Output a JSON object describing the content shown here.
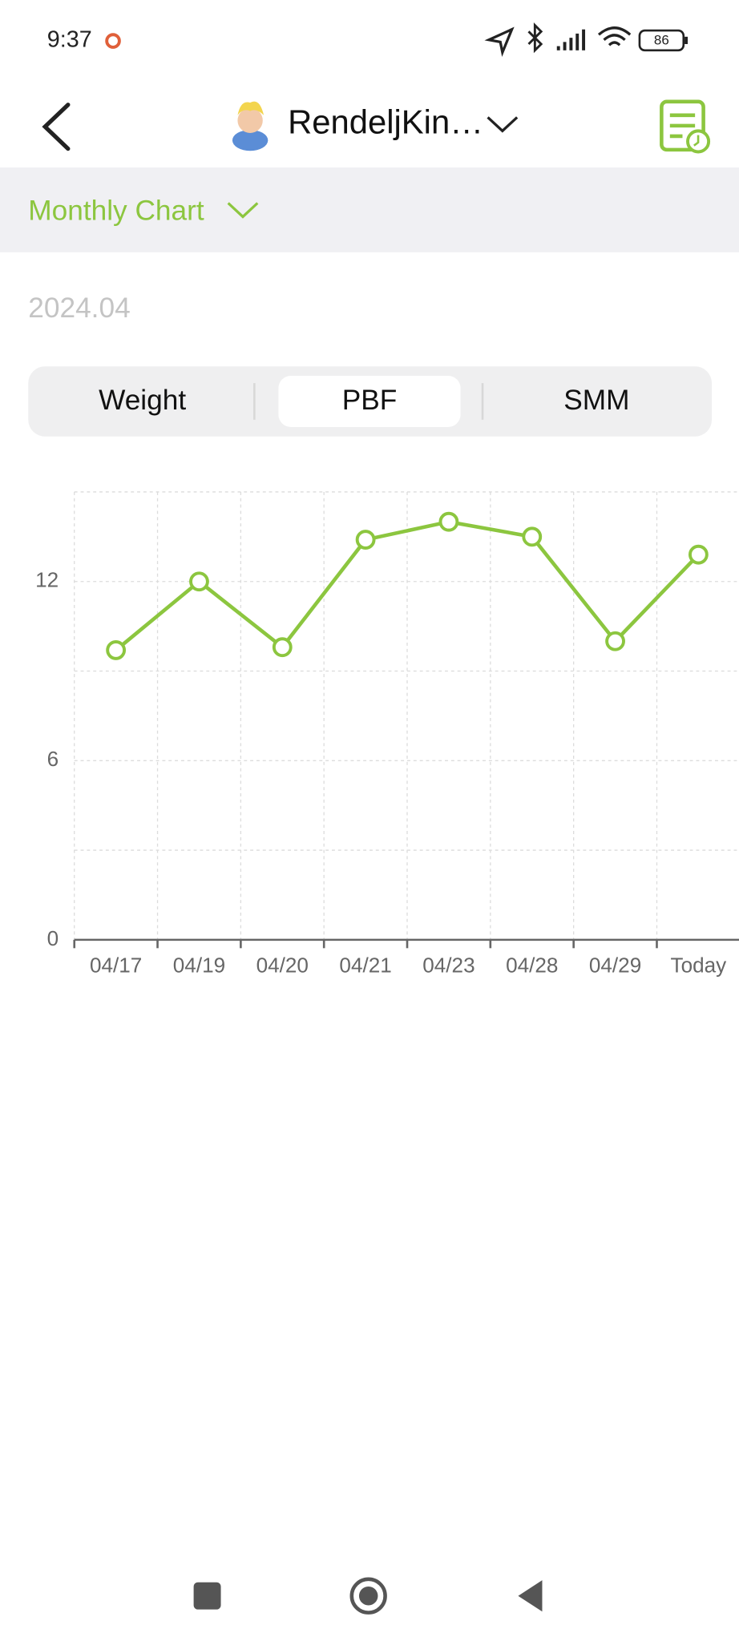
{
  "status_bar": {
    "time": "9:37",
    "battery": "86"
  },
  "header": {
    "title": "RendeljKin…"
  },
  "period": {
    "label": "Monthly Chart"
  },
  "month": "2024.04",
  "tabs": [
    "Weight",
    "PBF",
    "SMM"
  ],
  "chart_data": {
    "type": "line",
    "categories": [
      "04/17",
      "04/19",
      "04/20",
      "04/21",
      "04/23",
      "04/28",
      "04/29",
      "Today"
    ],
    "values": [
      9.7,
      12.0,
      9.8,
      13.4,
      14.0,
      13.5,
      10.0,
      12.9
    ],
    "color": "#8cc63f",
    "ylim": [
      0,
      15
    ],
    "yticks": [
      0,
      6,
      12
    ],
    "ygrid": [
      3,
      9,
      15
    ],
    "grid": true
  }
}
